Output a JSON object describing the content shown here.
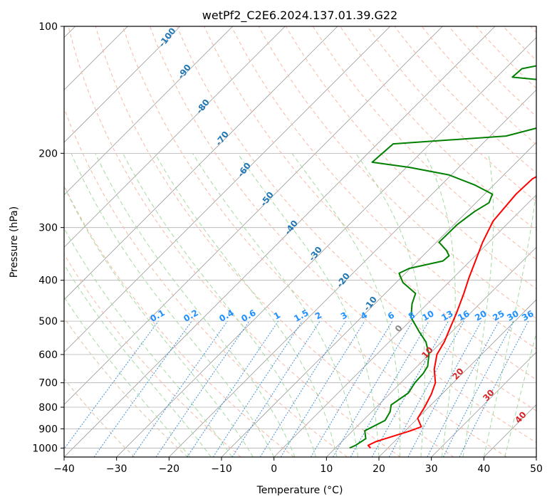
{
  "chart_data": {
    "type": "line",
    "subtype": "skew-T log-P diagram",
    "title": "wetPf2_C2E6.2024.137.01.39.G22",
    "xlabel": "Temperature (°C)",
    "ylabel": "Pressure (hPa)",
    "xlim": [
      -40,
      50
    ],
    "ylim": [
      1050,
      100
    ],
    "y_scale": "log",
    "x_ticks": [
      -40,
      -30,
      -20,
      -10,
      0,
      10,
      20,
      30,
      40,
      50
    ],
    "y_ticks": [
      1000,
      900,
      800,
      700,
      600,
      500,
      400,
      300,
      200,
      100
    ],
    "grid": true,
    "series": [
      {
        "color": "#ff0000",
        "points": [
          [
            16.7,
            1000
          ],
          [
            15.7,
            985
          ],
          [
            16.5,
            965
          ],
          [
            21.0,
            910
          ],
          [
            22.3,
            890
          ],
          [
            20.0,
            850
          ],
          [
            19.2,
            800
          ],
          [
            18.0,
            745
          ],
          [
            16.6,
            700
          ],
          [
            13.8,
            650
          ],
          [
            11.5,
            600
          ],
          [
            10.5,
            560
          ],
          [
            8.8,
            515
          ],
          [
            7.4,
            480
          ],
          [
            5.0,
            430
          ],
          [
            3.0,
            395
          ],
          [
            1.0,
            360
          ],
          [
            -1.2,
            325
          ],
          [
            -3.2,
            290
          ],
          [
            -4.0,
            250
          ],
          [
            -3.8,
            230
          ],
          [
            -1.5,
            213
          ],
          [
            1.0,
            198
          ],
          [
            4.3,
            183
          ],
          [
            6.2,
            170
          ],
          [
            7.8,
            155
          ],
          [
            8.8,
            143
          ],
          [
            11.0,
            132
          ],
          [
            14.0,
            119
          ],
          [
            16.0,
            110
          ],
          [
            17.5,
            100
          ]
        ]
      },
      {
        "color": "#008000",
        "points": [
          [
            12.7,
            1000
          ],
          [
            13.3,
            985
          ],
          [
            14.0,
            950
          ],
          [
            12.3,
            910
          ],
          [
            14.2,
            860
          ],
          [
            13.5,
            820
          ],
          [
            12.4,
            790
          ],
          [
            13.4,
            740
          ],
          [
            12.7,
            700
          ],
          [
            12.5,
            665
          ],
          [
            12.0,
            640
          ],
          [
            10.0,
            600
          ],
          [
            7.0,
            560
          ],
          [
            3.8,
            530
          ],
          [
            -0.5,
            490
          ],
          [
            -2.9,
            455
          ],
          [
            -4.2,
            430
          ],
          [
            -8.7,
            405
          ],
          [
            -11.2,
            385
          ],
          [
            -10.2,
            375
          ],
          [
            -5.2,
            360
          ],
          [
            -5.0,
            350
          ],
          [
            -6.5,
            340
          ],
          [
            -9.5,
            325
          ],
          [
            -9.4,
            295
          ],
          [
            -8.6,
            275
          ],
          [
            -7.5,
            262
          ],
          [
            -8.5,
            250
          ],
          [
            -13.5,
            238
          ],
          [
            -20.5,
            225
          ],
          [
            -29.4,
            216
          ],
          [
            -37.5,
            210
          ],
          [
            -37.0,
            190
          ],
          [
            -17.0,
            182
          ],
          [
            -12.5,
            174
          ],
          [
            -12.0,
            164
          ],
          [
            -11.5,
            150
          ],
          [
            -12.0,
            141
          ],
          [
            -18.0,
            135
          ],
          [
            -27.0,
            132
          ],
          [
            -26.8,
            126
          ],
          [
            -21.0,
            121
          ],
          [
            -14.0,
            117
          ],
          [
            -10.5,
            110
          ],
          [
            -9.3,
            102
          ],
          [
            -9.3,
            100
          ]
        ]
      }
    ],
    "dry_adiabat_labels": [
      "-100",
      "-90",
      "-80",
      "-70",
      "-60",
      "-50",
      "-40",
      "-30",
      "-20",
      "-10",
      "0"
    ],
    "moist_adiabat_labels": [
      "10",
      "20",
      "30",
      "40"
    ],
    "mixing_ratio_labels": [
      "0.1",
      "0.2",
      "0.4",
      "0.6",
      "1",
      "1.5",
      "2",
      "3",
      "4",
      "6",
      "8",
      "10",
      "13",
      "16",
      "20",
      "25",
      "30",
      "36"
    ]
  }
}
